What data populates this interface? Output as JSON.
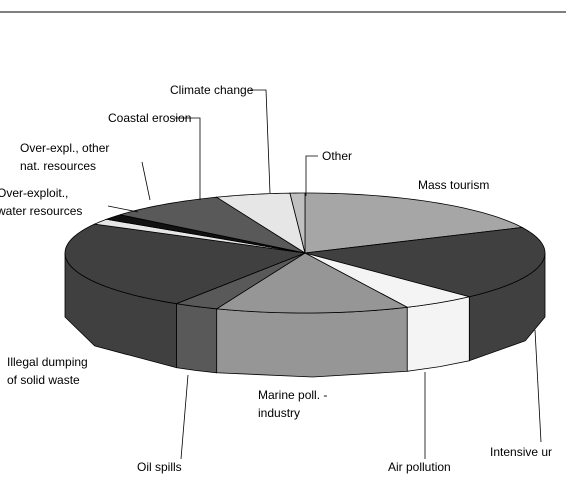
{
  "chart_data": {
    "type": "pie3d",
    "categories": [
      "Mass tourism",
      "Intensive ur",
      "Air pollution",
      "Marine poll. -\nindustry",
      "Oil spills",
      "Illegal dumping\nof solid waste",
      "Over-exploit.,\nwater resources",
      "Over-expl., other\nnat. resources",
      "Coastal erosion",
      "Climate change",
      "Other"
    ],
    "values": [
      18,
      20,
      5,
      13,
      3,
      24,
      1.5,
      1.5,
      8,
      5,
      1
    ],
    "colors": [
      "#a6a6a6",
      "#404040",
      "#f4f4f4",
      "#969696",
      "#595959",
      "#404040",
      "#e6e6e6",
      "#111111",
      "#595959",
      "#e6e6e6",
      "#c0c0c0"
    ]
  }
}
